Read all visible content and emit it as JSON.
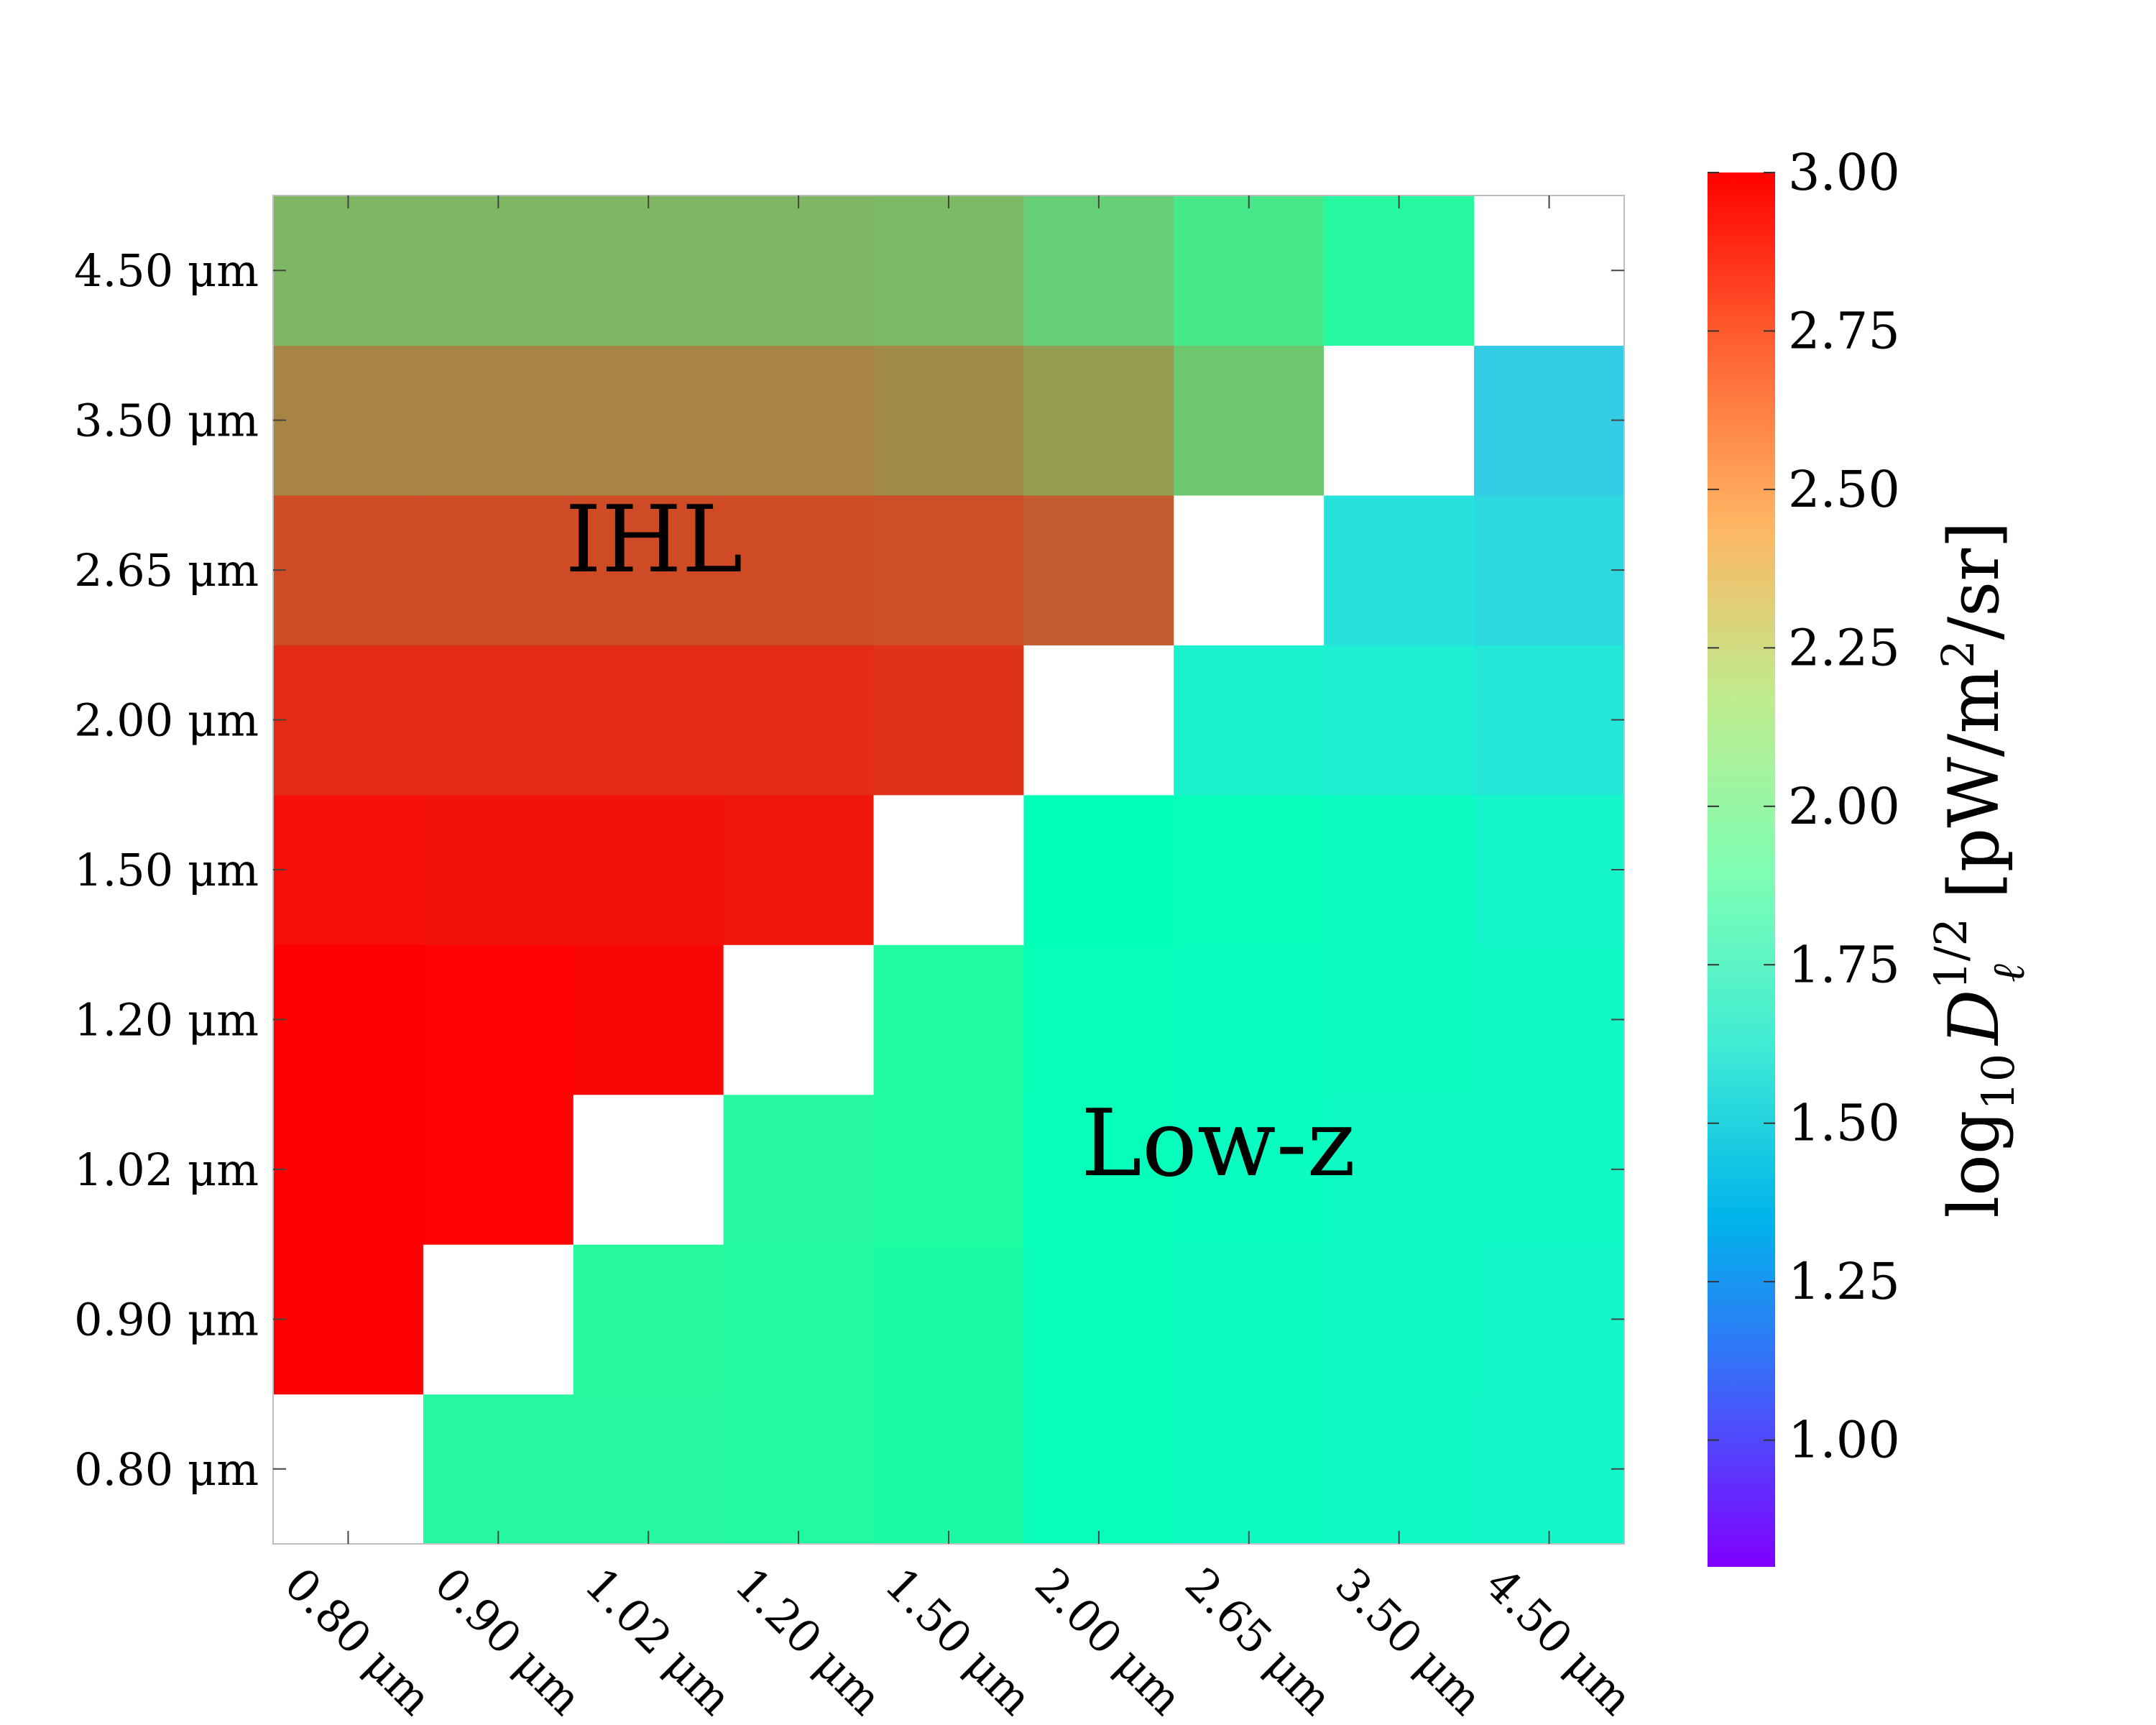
{
  "chart_data": {
    "type": "heatmap",
    "x_categories": [
      "0.80 μm",
      "0.90 μm",
      "1.02 μm",
      "1.20 μm",
      "1.50 μm",
      "2.00 μm",
      "2.65 μm",
      "3.50 μm",
      "4.50 μm"
    ],
    "y_categories": [
      "0.80 μm",
      "0.90 μm",
      "1.02 μm",
      "1.20 μm",
      "1.50 μm",
      "2.00 μm",
      "2.65 μm",
      "3.50 μm",
      "4.50 μm"
    ],
    "values": [
      [
        null,
        2.06,
        2.06,
        2.05,
        2.02,
        1.83,
        1.79,
        1.76,
        1.73
      ],
      [
        3.0,
        null,
        2.07,
        2.05,
        2.02,
        1.84,
        1.8,
        1.77,
        1.74
      ],
      [
        3.0,
        2.99,
        null,
        2.06,
        2.03,
        1.85,
        1.81,
        1.78,
        1.75
      ],
      [
        3.0,
        2.99,
        2.98,
        null,
        2.04,
        1.86,
        1.82,
        1.79,
        1.75
      ],
      [
        2.96,
        2.95,
        2.95,
        2.94,
        null,
        1.88,
        1.84,
        1.8,
        1.72
      ],
      [
        2.88,
        2.88,
        2.88,
        2.88,
        2.86,
        null,
        1.67,
        1.64,
        1.6
      ],
      [
        2.79,
        2.79,
        2.79,
        2.79,
        2.78,
        2.74,
        null,
        1.56,
        1.51
      ],
      [
        2.62,
        2.62,
        2.62,
        2.62,
        2.6,
        2.54,
        2.37,
        null,
        1.45
      ],
      [
        2.44,
        2.44,
        2.44,
        2.44,
        2.43,
        2.34,
        2.2,
        2.06,
        null
      ]
    ],
    "colorbar": {
      "range": [
        0.8,
        3.0
      ],
      "ticks": [
        "1.00",
        "1.25",
        "1.50",
        "1.75",
        "2.00",
        "2.25",
        "2.50",
        "2.75",
        "3.00"
      ],
      "label": "log₁₀ D_ℓ^(1/2) [pW/m²/sr]",
      "label_parts": {
        "prefix": "log",
        "sub": "10",
        "main": "D",
        "sup": "1/2",
        "sub2": "ℓ",
        "suffix": " [pW/m",
        "sup2": "2",
        "suffix2": "/sr]"
      },
      "colormap": "rainbow"
    },
    "annotations": [
      "IHL",
      "Low-z"
    ]
  }
}
